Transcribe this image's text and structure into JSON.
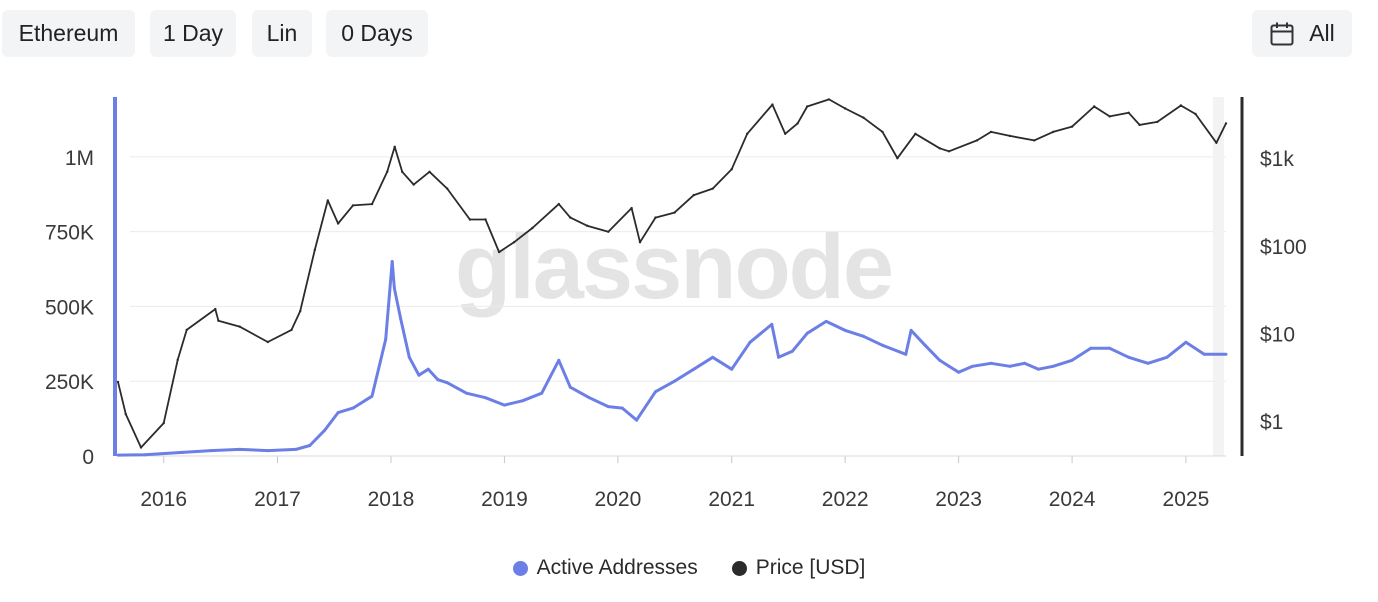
{
  "toolbar": {
    "asset": "Ethereum",
    "resolution": "1 Day",
    "scale": "Lin",
    "moving_average": "0 Days",
    "range": "All"
  },
  "watermark": "glassnode",
  "colors": {
    "active_addresses": "#6b7fe6",
    "price": "#2b2b2b",
    "grid": "#ebebeb",
    "axis_text": "#3a3a3a",
    "watermark": "#e4e4e4"
  },
  "chart_data": {
    "type": "line",
    "x_ticks": [
      "2016",
      "2017",
      "2018",
      "2019",
      "2020",
      "2021",
      "2022",
      "2023",
      "2024",
      "2025"
    ],
    "xlim": [
      "2015-08-07",
      "2025-05-10"
    ],
    "y_left": {
      "ticks": [
        "0",
        "250K",
        "500K",
        "750K",
        "1M"
      ],
      "tick_values": [
        0,
        250000,
        500000,
        750000,
        1000000
      ],
      "ylim": [
        0,
        1200000
      ]
    },
    "y_right": {
      "scale": "log",
      "ticks": [
        "$1",
        "$10",
        "$100",
        "$1k"
      ],
      "tick_values": [
        1,
        10,
        100,
        1000
      ],
      "ylim": [
        0.4,
        5000
      ]
    },
    "grid": true,
    "legend_position": "bottom-center",
    "series": [
      {
        "name": "Active Addresses",
        "axis": "left",
        "x": [
          "2015-08-07",
          "2015-11-01",
          "2016-03-01",
          "2016-06-01",
          "2016-09-01",
          "2016-12-01",
          "2017-03-01",
          "2017-04-15",
          "2017-06-01",
          "2017-07-15",
          "2017-09-01",
          "2017-11-01",
          "2017-12-15",
          "2018-01-05",
          "2018-01-12",
          "2018-02-01",
          "2018-03-01",
          "2018-04-01",
          "2018-05-01",
          "2018-06-01",
          "2018-07-01",
          "2018-09-01",
          "2018-11-01",
          "2019-01-01",
          "2019-03-01",
          "2019-05-01",
          "2019-06-25",
          "2019-08-01",
          "2019-10-01",
          "2019-12-01",
          "2020-01-15",
          "2020-03-01",
          "2020-05-01",
          "2020-07-01",
          "2020-09-01",
          "2020-11-01",
          "2021-01-01",
          "2021-03-01",
          "2021-05-10",
          "2021-06-01",
          "2021-07-15",
          "2021-09-01",
          "2021-11-01",
          "2022-01-01",
          "2022-03-01",
          "2022-05-01",
          "2022-07-15",
          "2022-08-01",
          "2022-09-15",
          "2022-11-01",
          "2022-12-01",
          "2023-01-01",
          "2023-02-15",
          "2023-04-15",
          "2023-06-15",
          "2023-08-01",
          "2023-09-15",
          "2023-11-01",
          "2024-01-01",
          "2024-03-01",
          "2024-05-01",
          "2024-07-01",
          "2024-09-01",
          "2024-11-01",
          "2025-01-01",
          "2025-03-01",
          "2025-05-10"
        ],
        "values": [
          3000,
          4000,
          12000,
          18000,
          22000,
          18000,
          22000,
          35000,
          85000,
          145000,
          160000,
          200000,
          390000,
          650000,
          560000,
          460000,
          330000,
          270000,
          290000,
          255000,
          245000,
          210000,
          195000,
          170000,
          185000,
          210000,
          320000,
          230000,
          195000,
          165000,
          160000,
          120000,
          215000,
          250000,
          290000,
          330000,
          290000,
          380000,
          440000,
          330000,
          350000,
          410000,
          450000,
          420000,
          400000,
          370000,
          340000,
          420000,
          370000,
          320000,
          300000,
          280000,
          300000,
          310000,
          300000,
          310000,
          290000,
          300000,
          320000,
          360000,
          360000,
          330000,
          310000,
          330000,
          380000,
          340000,
          340000
        ]
      },
      {
        "name": "Price [USD]",
        "axis": "right",
        "x": [
          "2015-08-07",
          "2015-09-01",
          "2015-10-20",
          "2016-01-01",
          "2016-02-15",
          "2016-03-15",
          "2016-06-15",
          "2016-06-25",
          "2016-09-01",
          "2016-12-01",
          "2017-02-15",
          "2017-03-15",
          "2017-05-01",
          "2017-06-12",
          "2017-07-15",
          "2017-09-01",
          "2017-11-01",
          "2017-12-20",
          "2018-01-13",
          "2018-02-06",
          "2018-03-15",
          "2018-05-05",
          "2018-07-01",
          "2018-09-12",
          "2018-11-01",
          "2018-12-15",
          "2019-02-01",
          "2019-04-01",
          "2019-06-25",
          "2019-08-01",
          "2019-09-24",
          "2019-12-01",
          "2020-02-14",
          "2020-03-12",
          "2020-05-01",
          "2020-07-01",
          "2020-09-01",
          "2020-11-01",
          "2021-01-01",
          "2021-02-20",
          "2021-05-12",
          "2021-06-22",
          "2021-08-01",
          "2021-09-01",
          "2021-11-10",
          "2022-01-01",
          "2022-03-01",
          "2022-05-01",
          "2022-06-18",
          "2022-08-15",
          "2022-11-01",
          "2022-12-01",
          "2023-03-01",
          "2023-04-15",
          "2023-06-15",
          "2023-09-01",
          "2023-11-01",
          "2024-01-01",
          "2024-03-12",
          "2024-05-01",
          "2024-07-01",
          "2024-08-05",
          "2024-10-01",
          "2024-12-16",
          "2025-02-01",
          "2025-04-09",
          "2025-05-10"
        ],
        "values": [
          2.8,
          1.2,
          0.5,
          0.95,
          5,
          11,
          19,
          14,
          12,
          8,
          11,
          18,
          90,
          330,
          180,
          290,
          300,
          700,
          1350,
          700,
          500,
          700,
          450,
          200,
          200,
          85,
          110,
          160,
          300,
          210,
          170,
          145,
          270,
          110,
          210,
          240,
          380,
          450,
          750,
          1900,
          4100,
          1900,
          2500,
          3900,
          4700,
          3700,
          2900,
          2000,
          1000,
          1900,
          1300,
          1200,
          1600,
          2000,
          1800,
          1600,
          2000,
          2300,
          3900,
          3000,
          3300,
          2400,
          2600,
          4000,
          3200,
          1500,
          2500
        ]
      }
    ]
  }
}
